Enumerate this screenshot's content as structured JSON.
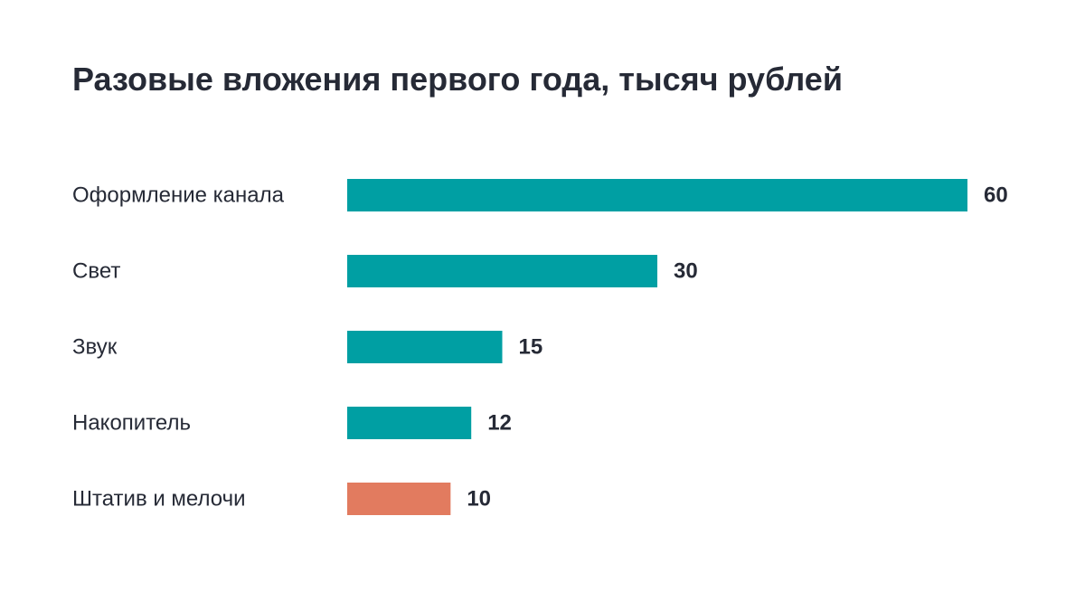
{
  "chart_data": {
    "type": "bar",
    "orientation": "horizontal",
    "title": "Разовые вложения первого года, тысяч рублей",
    "categories": [
      "Оформление канала",
      "Свет",
      "Звук",
      "Накопитель",
      "Штатив и мелочи"
    ],
    "values": [
      60,
      30,
      15,
      12,
      10
    ],
    "value_labels": [
      "60",
      "30",
      "15",
      "12",
      "10"
    ],
    "xlim": [
      0,
      60
    ],
    "grid": false,
    "colors": {
      "default": "#009fa3",
      "highlight": "#e27b5f"
    },
    "highlight_index": 4
  }
}
